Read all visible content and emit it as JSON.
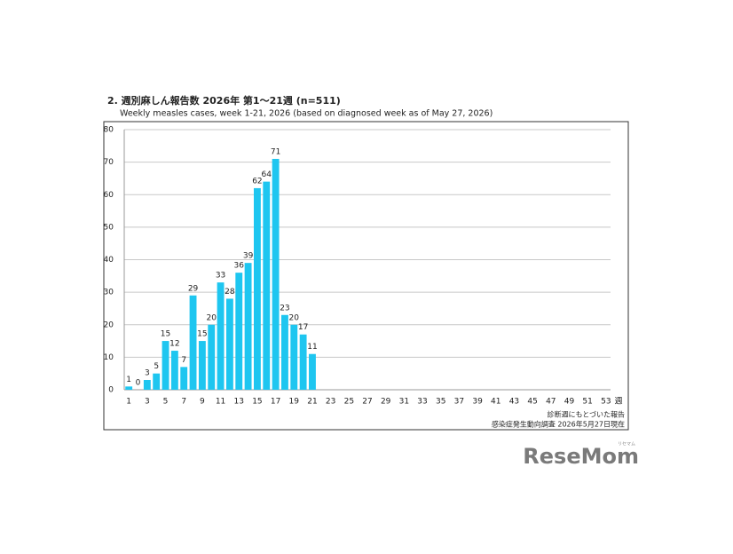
{
  "chart_data": {
    "type": "bar",
    "title": "2. 週別麻しん報告数 2026年 第1～21週 (n=511)",
    "subtitle": "Weekly measles cases, week 1-21, 2026 (based on diagnosed week as of May 27, 2026)",
    "x_label": "週",
    "categories": [
      "1",
      null,
      "3",
      null,
      "5",
      null,
      "7",
      null,
      "9",
      null,
      "11",
      null,
      "13",
      null,
      "15",
      null,
      "17",
      null,
      "19",
      null,
      "21",
      null,
      "23",
      null,
      "25",
      null,
      "27",
      null,
      "29",
      null,
      "31",
      null,
      "33",
      null,
      "35",
      null,
      "37",
      null,
      "39",
      null,
      "41",
      null,
      "43",
      null,
      "45",
      null,
      "47",
      null,
      "49",
      null,
      "51",
      null,
      "53"
    ],
    "values": [
      1,
      0,
      3,
      5,
      15,
      12,
      7,
      29,
      15,
      20,
      33,
      28,
      36,
      39,
      62,
      64,
      71,
      23,
      20,
      17,
      11,
      null,
      null,
      null,
      null,
      null,
      null,
      null,
      null,
      null,
      null,
      null,
      null,
      null,
      null,
      null,
      null,
      null,
      null,
      null,
      null,
      null,
      null,
      null,
      null,
      null,
      null,
      null,
      null,
      null,
      null,
      null,
      null
    ],
    "color": "#1ec6f0",
    "ylim": [
      0,
      80
    ],
    "yticks": [
      0,
      10,
      20,
      30,
      40,
      50,
      60,
      70,
      80
    ],
    "grid": true,
    "annotations": [
      "診断週にもとづいた報告",
      "感染症発生動向調査 2026年5月27日現在"
    ]
  },
  "logo": {
    "text": "ReseMom",
    "ruby": "リセマム"
  }
}
